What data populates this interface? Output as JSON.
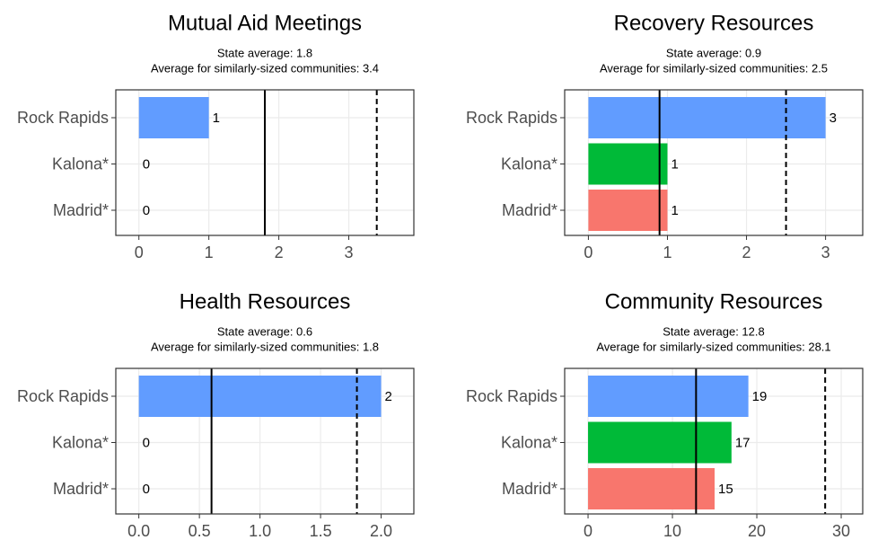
{
  "chart_data": [
    {
      "type": "bar",
      "orientation": "horizontal",
      "title": "Mutual Aid Meetings",
      "subtitle": [
        "State average: 1.8",
        "Average for similarly-sized communities: 3.4"
      ],
      "categories": [
        "Rock Rapids",
        "Kalona*",
        "Madrid*"
      ],
      "values": [
        1,
        0,
        0
      ],
      "colors": [
        "#619CFF",
        "#00BA38",
        "#F8766D"
      ],
      "xlim": [
        -0.33,
        3.93
      ],
      "xticks": [
        0,
        1,
        2,
        3
      ],
      "grid": true,
      "reference_lines": [
        {
          "value": 1.8,
          "style": "solid"
        },
        {
          "value": 3.4,
          "style": "dashed"
        }
      ]
    },
    {
      "type": "bar",
      "orientation": "horizontal",
      "title": "Recovery Resources",
      "subtitle": [
        "State average: 0.9",
        "Average for similarly-sized communities: 2.5"
      ],
      "categories": [
        "Rock Rapids",
        "Kalona*",
        "Madrid*"
      ],
      "values": [
        3,
        1,
        1
      ],
      "colors": [
        "#619CFF",
        "#00BA38",
        "#F8766D"
      ],
      "xlim": [
        -0.3,
        3.47
      ],
      "xticks": [
        0,
        1,
        2,
        3
      ],
      "grid": true,
      "reference_lines": [
        {
          "value": 0.9,
          "style": "solid"
        },
        {
          "value": 2.5,
          "style": "dashed"
        }
      ]
    },
    {
      "type": "bar",
      "orientation": "horizontal",
      "title": "Health Resources",
      "subtitle": [
        "State average: 0.6",
        "Average for similarly-sized communities: 1.8"
      ],
      "categories": [
        "Rock Rapids",
        "Kalona*",
        "Madrid*"
      ],
      "values": [
        2,
        0,
        0
      ],
      "colors": [
        "#619CFF",
        "#00BA38",
        "#F8766D"
      ],
      "xlim": [
        -0.19,
        2.27
      ],
      "xticks": [
        {
          "value": 0,
          "label": "0.0"
        },
        0.5,
        {
          "value": 1,
          "label": "1.0"
        },
        1.5,
        {
          "value": 2,
          "label": "2.0"
        }
      ],
      "grid": true,
      "reference_lines": [
        {
          "value": 0.6,
          "style": "solid"
        },
        {
          "value": 1.8,
          "style": "dashed"
        }
      ]
    },
    {
      "type": "bar",
      "orientation": "horizontal",
      "title": "Community Resources",
      "subtitle": [
        "State average: 12.8",
        "Average for similarly-sized communities: 28.1"
      ],
      "categories": [
        "Rock Rapids",
        "Kalona*",
        "Madrid*"
      ],
      "values": [
        19,
        17,
        15
      ],
      "colors": [
        "#619CFF",
        "#00BA38",
        "#F8766D"
      ],
      "xlim": [
        -2.77,
        32.55
      ],
      "xticks": [
        0,
        10,
        20,
        30
      ],
      "grid": true,
      "reference_lines": [
        {
          "value": 12.8,
          "style": "solid"
        },
        {
          "value": 28.1,
          "style": "dashed"
        }
      ]
    }
  ]
}
